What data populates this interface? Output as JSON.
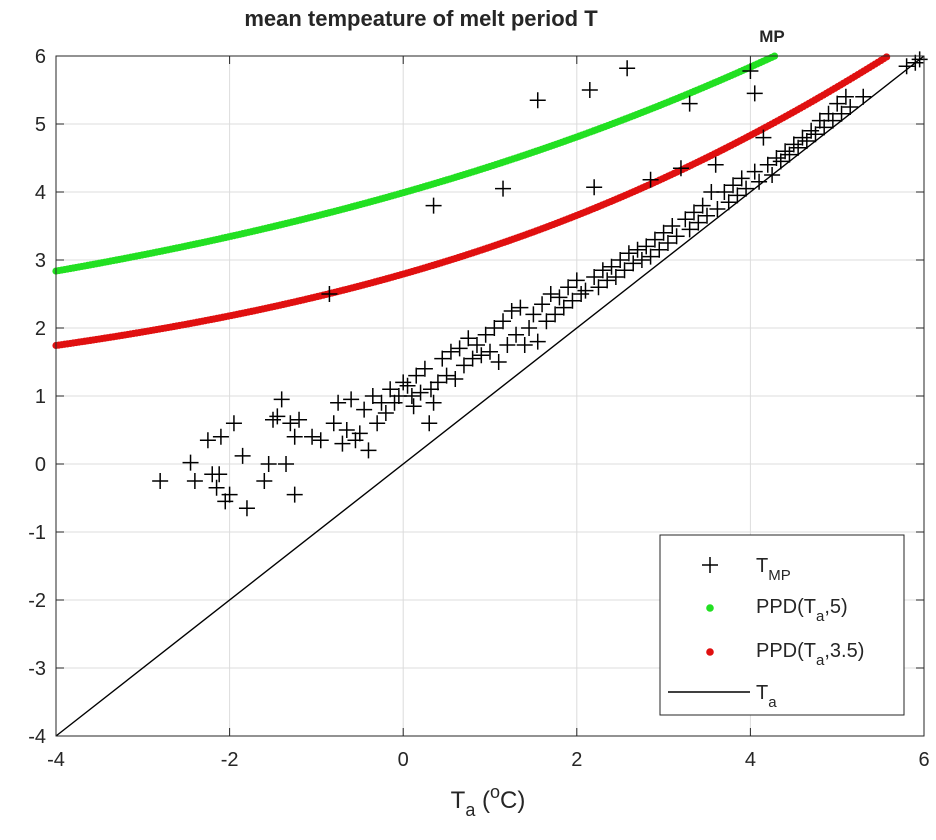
{
  "chart_data": {
    "type": "scatter",
    "title_main": "mean tempeature of melt period T",
    "title_sub": "MP",
    "xlabel": {
      "base": "T",
      "sub": "a",
      "rest1": " (",
      "sup": "o",
      "rest2": "C)"
    },
    "ylabel": "",
    "xlim": [
      -4,
      6
    ],
    "ylim": [
      -4,
      6
    ],
    "xticks": [
      -4,
      -2,
      0,
      2,
      4,
      6
    ],
    "yticks": [
      -4,
      -3,
      -2,
      -1,
      0,
      1,
      2,
      3,
      4,
      5,
      6
    ],
    "grid": true,
    "legend_position": "bottom-right",
    "legend": [
      {
        "key": "tmp",
        "base": "T",
        "sub": "MP",
        "tail": "",
        "marker": "plus",
        "color": "#000000"
      },
      {
        "key": "ppd5",
        "base": "PPD(T",
        "sub": "a",
        "tail": ",5)",
        "marker": "dot",
        "color": "#22e022"
      },
      {
        "key": "ppd35",
        "base": "PPD(T",
        "sub": "a",
        "tail": ",3.5)",
        "marker": "dot",
        "color": "#e01010"
      },
      {
        "key": "ta",
        "base": "T",
        "sub": "a",
        "tail": "",
        "marker": "line",
        "color": "#000000"
      }
    ],
    "series": [
      {
        "key": "tmp",
        "marker": "plus",
        "color": "#000000",
        "points": [
          [
            -2.8,
            -0.25
          ],
          [
            -2.45,
            0.02
          ],
          [
            -2.4,
            -0.25
          ],
          [
            -2.25,
            0.35
          ],
          [
            -2.2,
            -0.15
          ],
          [
            -2.15,
            -0.35
          ],
          [
            -2.12,
            -0.15
          ],
          [
            -2.1,
            0.4
          ],
          [
            -2.05,
            -0.55
          ],
          [
            -2.0,
            -0.45
          ],
          [
            -1.95,
            0.6
          ],
          [
            -1.85,
            0.12
          ],
          [
            -1.8,
            -0.65
          ],
          [
            -1.6,
            -0.25
          ],
          [
            -1.55,
            0.0
          ],
          [
            -1.5,
            0.65
          ],
          [
            -1.45,
            0.7
          ],
          [
            -1.4,
            0.95
          ],
          [
            -1.35,
            0.0
          ],
          [
            -1.3,
            0.6
          ],
          [
            -1.25,
            -0.45
          ],
          [
            -1.25,
            0.4
          ],
          [
            -1.2,
            0.65
          ],
          [
            -1.05,
            0.4
          ],
          [
            -0.95,
            0.35
          ],
          [
            -0.85,
            2.5
          ],
          [
            -0.8,
            0.6
          ],
          [
            -0.75,
            0.9
          ],
          [
            -0.7,
            0.3
          ],
          [
            -0.65,
            0.5
          ],
          [
            -0.6,
            0.95
          ],
          [
            -0.55,
            0.35
          ],
          [
            -0.5,
            0.45
          ],
          [
            -0.45,
            0.8
          ],
          [
            -0.4,
            0.2
          ],
          [
            -0.35,
            1.0
          ],
          [
            -0.3,
            0.6
          ],
          [
            -0.25,
            0.9
          ],
          [
            -0.2,
            0.75
          ],
          [
            -0.15,
            1.1
          ],
          [
            -0.1,
            0.9
          ],
          [
            -0.05,
            1.0
          ],
          [
            0.0,
            1.2
          ],
          [
            0.05,
            1.15
          ],
          [
            0.1,
            1.0
          ],
          [
            0.12,
            0.85
          ],
          [
            0.15,
            1.3
          ],
          [
            0.2,
            1.05
          ],
          [
            0.25,
            1.4
          ],
          [
            0.3,
            0.6
          ],
          [
            0.32,
            1.1
          ],
          [
            0.35,
            0.9
          ],
          [
            0.35,
            3.8
          ],
          [
            0.4,
            1.2
          ],
          [
            0.45,
            1.55
          ],
          [
            0.5,
            1.3
          ],
          [
            0.55,
            1.65
          ],
          [
            0.6,
            1.25
          ],
          [
            0.65,
            1.7
          ],
          [
            0.7,
            1.45
          ],
          [
            0.75,
            1.85
          ],
          [
            0.8,
            1.55
          ],
          [
            0.85,
            1.75
          ],
          [
            0.9,
            1.6
          ],
          [
            0.95,
            1.9
          ],
          [
            1.0,
            1.65
          ],
          [
            1.05,
            2.0
          ],
          [
            1.1,
            1.5
          ],
          [
            1.15,
            4.05
          ],
          [
            1.15,
            2.1
          ],
          [
            1.2,
            1.75
          ],
          [
            1.25,
            2.25
          ],
          [
            1.3,
            1.9
          ],
          [
            1.35,
            2.3
          ],
          [
            1.4,
            1.75
          ],
          [
            1.45,
            2.0
          ],
          [
            1.5,
            2.2
          ],
          [
            1.55,
            5.35
          ],
          [
            1.55,
            1.8
          ],
          [
            1.6,
            2.35
          ],
          [
            1.65,
            2.1
          ],
          [
            1.7,
            2.5
          ],
          [
            1.75,
            2.2
          ],
          [
            1.8,
            2.45
          ],
          [
            1.85,
            2.3
          ],
          [
            1.9,
            2.6
          ],
          [
            1.95,
            2.4
          ],
          [
            2.0,
            2.7
          ],
          [
            2.05,
            2.5
          ],
          [
            2.1,
            2.55
          ],
          [
            2.15,
            5.5
          ],
          [
            2.2,
            4.07
          ],
          [
            2.2,
            2.75
          ],
          [
            2.25,
            2.6
          ],
          [
            2.3,
            2.85
          ],
          [
            2.35,
            2.7
          ],
          [
            2.4,
            2.9
          ],
          [
            2.45,
            2.75
          ],
          [
            2.5,
            3.0
          ],
          [
            2.55,
            2.85
          ],
          [
            2.58,
            5.82
          ],
          [
            2.6,
            3.1
          ],
          [
            2.65,
            2.95
          ],
          [
            2.7,
            3.15
          ],
          [
            2.75,
            3.0
          ],
          [
            2.8,
            3.2
          ],
          [
            2.85,
            4.18
          ],
          [
            2.85,
            3.05
          ],
          [
            2.9,
            3.3
          ],
          [
            2.95,
            3.15
          ],
          [
            3.0,
            3.4
          ],
          [
            3.05,
            3.25
          ],
          [
            3.1,
            3.5
          ],
          [
            3.15,
            3.35
          ],
          [
            3.2,
            4.35
          ],
          [
            3.25,
            3.6
          ],
          [
            3.3,
            5.3
          ],
          [
            3.3,
            3.45
          ],
          [
            3.35,
            3.7
          ],
          [
            3.4,
            3.55
          ],
          [
            3.45,
            3.8
          ],
          [
            3.5,
            3.65
          ],
          [
            3.55,
            4.0
          ],
          [
            3.6,
            4.4
          ],
          [
            3.62,
            3.75
          ],
          [
            3.7,
            4.0
          ],
          [
            3.75,
            3.85
          ],
          [
            3.8,
            4.1
          ],
          [
            3.85,
            3.95
          ],
          [
            3.9,
            4.2
          ],
          [
            3.95,
            4.05
          ],
          [
            4.0,
            5.78
          ],
          [
            4.05,
            5.45
          ],
          [
            4.05,
            4.3
          ],
          [
            4.1,
            4.15
          ],
          [
            4.15,
            4.8
          ],
          [
            4.2,
            4.4
          ],
          [
            4.25,
            4.25
          ],
          [
            4.3,
            4.5
          ],
          [
            4.35,
            4.45
          ],
          [
            4.4,
            4.6
          ],
          [
            4.45,
            4.55
          ],
          [
            4.5,
            4.7
          ],
          [
            4.55,
            4.65
          ],
          [
            4.6,
            4.8
          ],
          [
            4.65,
            4.75
          ],
          [
            4.7,
            4.9
          ],
          [
            4.75,
            4.85
          ],
          [
            4.8,
            5.05
          ],
          [
            4.85,
            4.95
          ],
          [
            4.9,
            5.15
          ],
          [
            4.95,
            5.05
          ],
          [
            5.0,
            5.3
          ],
          [
            5.05,
            5.15
          ],
          [
            5.1,
            5.4
          ],
          [
            5.15,
            5.25
          ],
          [
            5.3,
            5.4
          ],
          [
            5.8,
            5.85
          ],
          [
            5.9,
            5.9
          ],
          [
            5.95,
            5.95
          ]
        ]
      },
      {
        "key": "ppd5",
        "marker": "dot",
        "color": "#22e022",
        "sigma": 5,
        "x_range": [
          -4,
          5.9
        ],
        "count": 300
      },
      {
        "key": "ppd35",
        "marker": "dot",
        "color": "#e01010",
        "sigma": 3.5,
        "x_range": [
          -4,
          5.9
        ],
        "count": 300
      },
      {
        "key": "ta",
        "marker": "line",
        "color": "#000000",
        "x_range": [
          -4,
          6
        ]
      }
    ]
  }
}
